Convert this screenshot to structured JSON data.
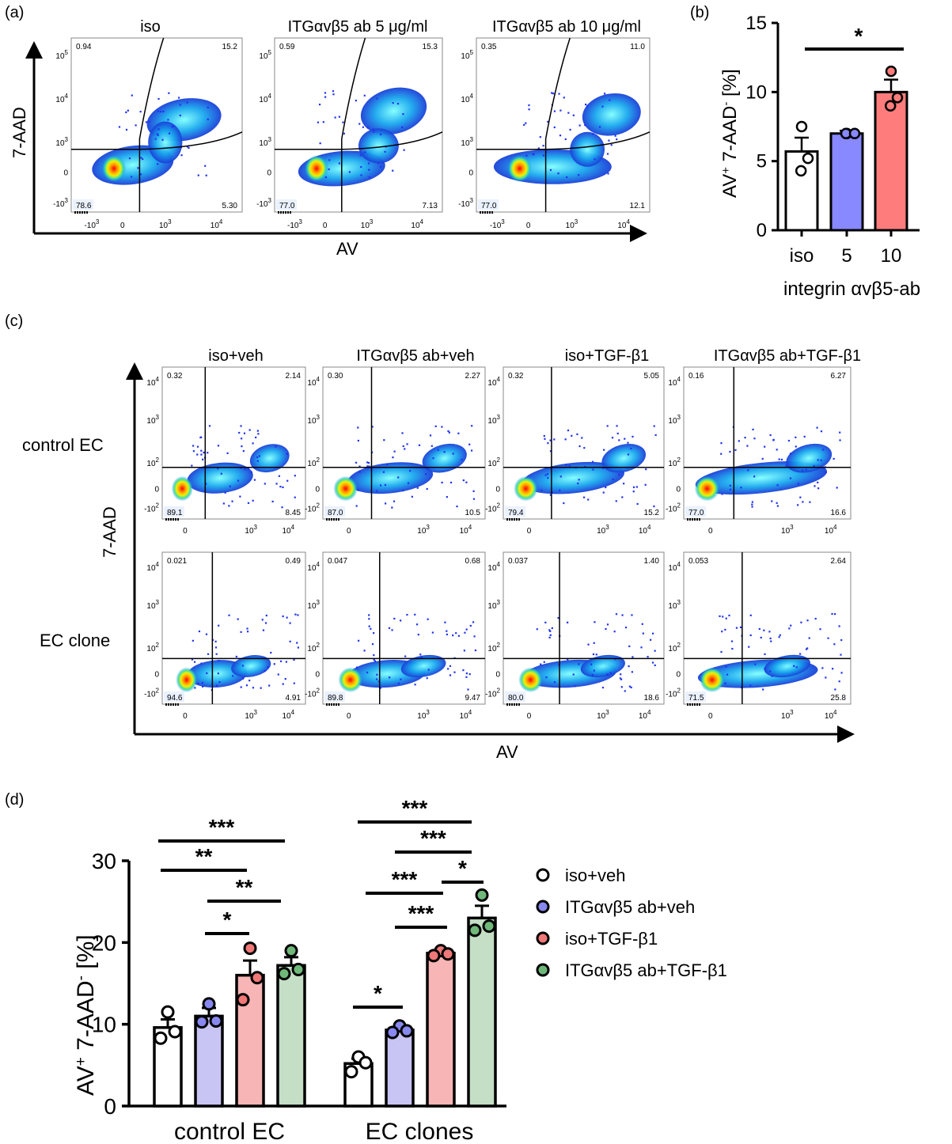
{
  "panel_a": {
    "letter": "(a)",
    "y_axis": "7-AAD",
    "x_axis": "AV",
    "plots": [
      {
        "title": "iso",
        "ul": "0.94",
        "ur": "15.2",
        "ll": "78.6",
        "lr": "5.30"
      },
      {
        "title": "ITGαvβ5 ab 5 μg/ml",
        "ul": "0.59",
        "ur": "15.3",
        "ll": "77.0",
        "lr": "7.13"
      },
      {
        "title": "ITGαvβ5 ab 10 μg/ml",
        "ul": "0.35",
        "ur": "11.0",
        "ll": "77.0",
        "lr": "12.1"
      }
    ],
    "y_ticks": [
      "10",
      "10",
      "10",
      "0",
      "-10"
    ],
    "y_tick_exps": [
      "5",
      "4",
      "3",
      "",
      "3"
    ],
    "x_ticks": [
      "-10",
      "0",
      "10",
      "10"
    ],
    "x_tick_exps": [
      "3",
      "",
      "3",
      "4"
    ]
  },
  "panel_b": {
    "letter": "(b)",
    "ylabel_main": "AV",
    "ylabel_sup": "+",
    "ylabel_mid": " 7-AAD",
    "ylabel_sup2": "-",
    "ylabel_end": " [%]",
    "xlabel": "integrin αvβ5-ab",
    "yticks": [
      "0",
      "5",
      "10",
      "15"
    ],
    "sig": "*"
  },
  "panel_c": {
    "letter": "(c)",
    "y_axis": "7-AAD",
    "x_axis": "AV",
    "col_titles": [
      "iso+veh",
      "ITGαvβ5 ab+veh",
      "iso+TGF-β1",
      "ITGαvβ5 ab+TGF-β1"
    ],
    "row_labels": [
      "control EC",
      "EC clone"
    ],
    "rows": [
      [
        {
          "ul": "0.32",
          "ur": "2.14",
          "ll": "89.1",
          "lr": "8.45"
        },
        {
          "ul": "0.30",
          "ur": "2.27",
          "ll": "87.0",
          "lr": "10.5"
        },
        {
          "ul": "0.32",
          "ur": "5.05",
          "ll": "79.4",
          "lr": "15.2"
        },
        {
          "ul": "0.16",
          "ur": "6.27",
          "ll": "77.0",
          "lr": "16.6"
        }
      ],
      [
        {
          "ul": "0.021",
          "ur": "0.49",
          "ll": "94.6",
          "lr": "4.91"
        },
        {
          "ul": "0.047",
          "ur": "0.68",
          "ll": "89.8",
          "lr": "9.47"
        },
        {
          "ul": "0.037",
          "ur": "1.40",
          "ll": "80.0",
          "lr": "18.6"
        },
        {
          "ul": "0.053",
          "ur": "2.64",
          "ll": "71.5",
          "lr": "25.8"
        }
      ]
    ],
    "y_ticks": [
      "10",
      "10",
      "10",
      "0",
      "-10"
    ],
    "y_tick_exps": [
      "4",
      "3",
      "2",
      "",
      "2"
    ],
    "x_ticks": [
      "0",
      "10",
      "10"
    ],
    "x_tick_exps": [
      "",
      "3",
      "4"
    ]
  },
  "panel_d": {
    "letter": "(d)",
    "yticks": [
      "0",
      "10",
      "20",
      "30"
    ],
    "group_labels": [
      "control EC",
      "EC clones"
    ],
    "legend": [
      "iso+veh",
      "ITGαvβ5 ab+veh",
      "iso+TGF-β1",
      "ITGαvβ5 ab+TGF-β1"
    ],
    "sig_labels_ctrl": [
      "***",
      "**",
      "**",
      "*"
    ],
    "sig_labels_clone": [
      "***",
      "***",
      "***",
      "*",
      "***",
      "*"
    ]
  },
  "chart_data": [
    {
      "type": "bar",
      "panel": "b",
      "categories": [
        "iso",
        "5",
        "10"
      ],
      "values": [
        5.7,
        7.0,
        10.0
      ],
      "errors": [
        1.0,
        0.2,
        0.9
      ],
      "points": [
        [
          7.5,
          4.3,
          5.2
        ],
        [
          7.0,
          7.0,
          7.0
        ],
        [
          11.5,
          9.0,
          9.6
        ]
      ],
      "colors": [
        "#ffffff",
        "#8888ff",
        "#ff7c7c"
      ],
      "xlabel": "integrin αvβ5-ab",
      "ylabel": "AV+ 7-AAD- [%]",
      "ylim": [
        0,
        15
      ]
    },
    {
      "type": "bar",
      "panel": "d",
      "categories": [
        "control EC",
        "EC clones"
      ],
      "series": [
        {
          "name": "iso+veh",
          "color": "#ffffff",
          "values": [
            9.6,
            5.2
          ],
          "errors": [
            1.0,
            0.6
          ],
          "points": [
            [
              11.5,
              8.3,
              9.1
            ],
            [
              6.0,
              4.2,
              5.3
            ]
          ]
        },
        {
          "name": "ITGαvβ5 ab+veh",
          "color": "#c8c4f3",
          "values": [
            11.0,
            9.3
          ],
          "errors": [
            1.0,
            0.3
          ],
          "points": [
            [
              12.5,
              10.3,
              10.4
            ],
            [
              9.8,
              9.0,
              9.2
            ]
          ]
        },
        {
          "name": "iso+TGF-β1",
          "color": "#f7b5b5",
          "values": [
            16.0,
            18.7
          ],
          "errors": [
            1.8,
            0.3
          ],
          "points": [
            [
              19.3,
              13.0,
              15.7
            ],
            [
              19.0,
              18.4,
              18.6
            ]
          ]
        },
        {
          "name": "ITGαvβ5 ab+TGF-β1",
          "color": "#c4dfc6",
          "values": [
            17.2,
            23.0
          ],
          "errors": [
            1.0,
            1.5
          ],
          "points": [
            [
              19.0,
              16.2,
              16.7
            ],
            [
              25.8,
              21.5,
              22.0
            ]
          ]
        }
      ],
      "ylabel": "AV+ 7-AAD- [%]",
      "ylim": [
        0,
        30
      ]
    }
  ]
}
